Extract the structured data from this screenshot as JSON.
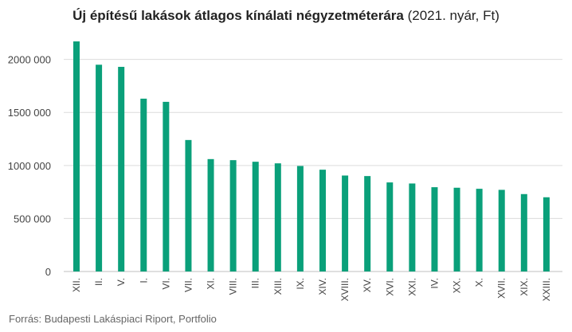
{
  "chart_data": {
    "type": "bar",
    "title": "Új építésű lakások átlagos kínálati négyzetméterára",
    "subtitle": "(2021. nyár, Ft)",
    "xlabel": "",
    "ylabel": "",
    "categories": [
      "XII.",
      "II.",
      "V.",
      "I.",
      "VI.",
      "VII.",
      "XI.",
      "VIII.",
      "III.",
      "XIII.",
      "IX.",
      "XIV.",
      "XVIII.",
      "XV.",
      "XVI.",
      "XXI.",
      "IV.",
      "XX.",
      "X.",
      "XVII.",
      "XIX.",
      "XXIII."
    ],
    "values": [
      2170000,
      1950000,
      1930000,
      1630000,
      1600000,
      1240000,
      1060000,
      1050000,
      1035000,
      1020000,
      995000,
      960000,
      905000,
      900000,
      840000,
      830000,
      795000,
      790000,
      780000,
      770000,
      730000,
      700000
    ],
    "ylim": [
      0,
      2200000
    ],
    "yticks": [
      0,
      500000,
      1000000,
      1500000,
      2000000
    ],
    "ytick_labels": [
      "0",
      "500 000",
      "1000 000",
      "1500 000",
      "2000 000"
    ],
    "grid": true,
    "legend": "none",
    "bar_color": "#0aa07a"
  },
  "source": "Forrás: Budapesti Lakáspiaci Riport, Portfolio"
}
